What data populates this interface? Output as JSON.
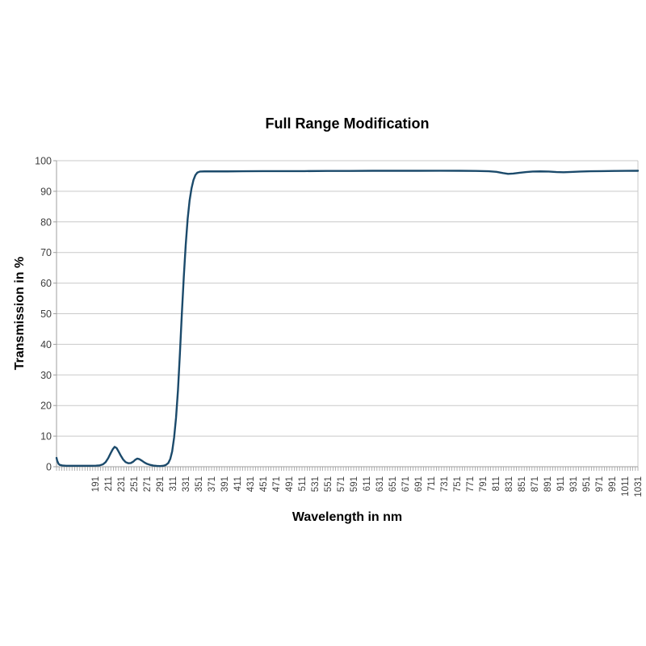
{
  "page": {
    "background": "#ffffff"
  },
  "chart_data": {
    "type": "line",
    "title": "Full Range Modification",
    "xlabel": "Wavelength in nm",
    "ylabel": "Transmission in %",
    "xlim": [
      131,
      1031
    ],
    "ylim": [
      0,
      100
    ],
    "grid": "horizontal",
    "legend": "none",
    "y_ticks": [
      0,
      10,
      20,
      30,
      40,
      50,
      60,
      70,
      80,
      90,
      100
    ],
    "x_tick_labels": [
      "191",
      "211",
      "231",
      "251",
      "271",
      "291",
      "311",
      "331",
      "351",
      "371",
      "391",
      "411",
      "431",
      "451",
      "471",
      "491",
      "511",
      "531",
      "551",
      "571",
      "591",
      "611",
      "631",
      "651",
      "671",
      "691",
      "711",
      "731",
      "751",
      "771",
      "791",
      "811",
      "831",
      "851",
      "871",
      "891",
      "911",
      "931",
      "951",
      "971",
      "991",
      "1011",
      "1031"
    ],
    "minor_tick_step_nm": 4,
    "colors": {
      "line": "#1b4a6b",
      "grid": "#c9c9c9",
      "axis": "#9f9f9f",
      "tick_label": "#3f3f3f",
      "title": "#000000"
    },
    "series": [
      {
        "name": "Transmission",
        "color": "#1b4a6b",
        "points": [
          [
            131,
            2.9
          ],
          [
            132,
            2.0
          ],
          [
            134,
            1.0
          ],
          [
            136,
            0.6
          ],
          [
            140,
            0.4
          ],
          [
            146,
            0.32
          ],
          [
            154,
            0.3
          ],
          [
            164,
            0.3
          ],
          [
            174,
            0.3
          ],
          [
            184,
            0.3
          ],
          [
            192,
            0.35
          ],
          [
            198,
            0.45
          ],
          [
            203,
            0.8
          ],
          [
            207,
            1.5
          ],
          [
            211,
            2.8
          ],
          [
            215,
            4.5
          ],
          [
            218,
            5.7
          ],
          [
            221,
            6.5
          ],
          [
            224,
            6.1
          ],
          [
            227,
            5.0
          ],
          [
            230,
            3.8
          ],
          [
            234,
            2.4
          ],
          [
            238,
            1.5
          ],
          [
            242,
            1.15
          ],
          [
            246,
            1.2
          ],
          [
            250,
            1.7
          ],
          [
            253,
            2.3
          ],
          [
            256,
            2.65
          ],
          [
            259,
            2.5
          ],
          [
            263,
            2.0
          ],
          [
            267,
            1.4
          ],
          [
            271,
            0.95
          ],
          [
            276,
            0.6
          ],
          [
            281,
            0.38
          ],
          [
            286,
            0.27
          ],
          [
            291,
            0.22
          ],
          [
            296,
            0.3
          ],
          [
            300,
            0.55
          ],
          [
            304,
            1.2
          ],
          [
            307,
            2.5
          ],
          [
            310,
            5
          ],
          [
            313,
            9.5
          ],
          [
            316,
            16
          ],
          [
            319,
            25
          ],
          [
            322,
            37
          ],
          [
            325,
            50
          ],
          [
            328,
            62
          ],
          [
            331,
            72.5
          ],
          [
            334,
            81
          ],
          [
            337,
            87
          ],
          [
            340,
            91
          ],
          [
            343,
            93.7
          ],
          [
            346,
            95.3
          ],
          [
            349,
            96.1
          ],
          [
            353,
            96.45
          ],
          [
            360,
            96.5
          ],
          [
            375,
            96.5
          ],
          [
            395,
            96.5
          ],
          [
            420,
            96.55
          ],
          [
            450,
            96.6
          ],
          [
            480,
            96.6
          ],
          [
            515,
            96.6
          ],
          [
            550,
            96.65
          ],
          [
            585,
            96.65
          ],
          [
            620,
            96.7
          ],
          [
            655,
            96.7
          ],
          [
            690,
            96.7
          ],
          [
            725,
            96.72
          ],
          [
            755,
            96.7
          ],
          [
            780,
            96.65
          ],
          [
            800,
            96.55
          ],
          [
            812,
            96.35
          ],
          [
            822,
            95.95
          ],
          [
            830,
            95.7
          ],
          [
            838,
            95.8
          ],
          [
            848,
            96.05
          ],
          [
            858,
            96.3
          ],
          [
            868,
            96.45
          ],
          [
            880,
            96.5
          ],
          [
            893,
            96.45
          ],
          [
            905,
            96.3
          ],
          [
            916,
            96.22
          ],
          [
            928,
            96.32
          ],
          [
            942,
            96.45
          ],
          [
            958,
            96.55
          ],
          [
            975,
            96.6
          ],
          [
            995,
            96.65
          ],
          [
            1012,
            96.68
          ],
          [
            1031,
            96.7
          ]
        ]
      }
    ]
  }
}
